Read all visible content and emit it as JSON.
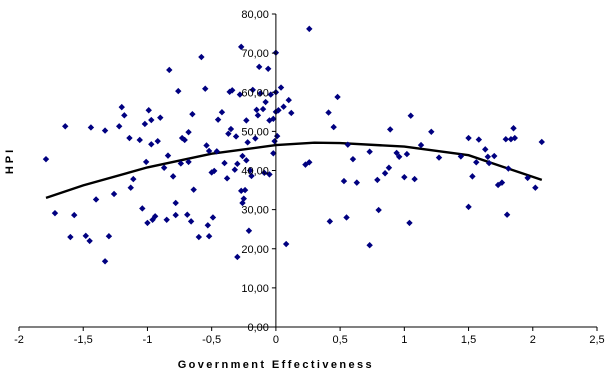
{
  "chart_data": {
    "type": "scatter",
    "title": "",
    "xlabel": "Government Effectiveness",
    "ylabel": "HPI",
    "xlim": [
      -2,
      2.5
    ],
    "ylim": [
      0,
      80
    ],
    "x_ticks": [
      "-2",
      "-1,5",
      "-1",
      "-0,5",
      "0",
      "0,5",
      "1",
      "1,5",
      "2",
      "2,5"
    ],
    "y_ticks": [
      "0,00",
      "10,00",
      "20,00",
      "30,00",
      "40,00",
      "50,00",
      "60,00",
      "70,00",
      "80,00"
    ],
    "grid": false,
    "legend": "none",
    "marker_color": "#000080",
    "trendline": {
      "type": "polynomial",
      "color": "#000000",
      "points": [
        [
          -1.79,
          33.0
        ],
        [
          -1.5,
          36.2
        ],
        [
          -1.0,
          40.8
        ],
        [
          -0.5,
          44.3
        ],
        [
          0.0,
          46.5
        ],
        [
          0.3,
          47.1
        ],
        [
          0.5,
          47.0
        ],
        [
          1.0,
          46.1
        ],
        [
          1.5,
          43.9
        ],
        [
          2.07,
          37.6
        ]
      ]
    },
    "series": [
      {
        "points": [
          [
            -1.79,
            42.9
          ],
          [
            -1.72,
            29.1
          ],
          [
            -1.64,
            51.3
          ],
          [
            -1.6,
            23.0
          ],
          [
            -1.57,
            28.6
          ],
          [
            -1.48,
            23.3
          ],
          [
            -1.45,
            22.0
          ],
          [
            -1.44,
            51.0
          ],
          [
            -1.4,
            32.6
          ],
          [
            -1.33,
            16.8
          ],
          [
            -1.33,
            50.2
          ],
          [
            -1.3,
            23.2
          ],
          [
            -1.26,
            34.0
          ],
          [
            -1.22,
            51.3
          ],
          [
            -1.2,
            56.2
          ],
          [
            -1.18,
            54.1
          ],
          [
            -1.14,
            48.3
          ],
          [
            -1.13,
            35.6
          ],
          [
            -1.11,
            37.8
          ],
          [
            -1.06,
            47.8
          ],
          [
            -1.04,
            30.3
          ],
          [
            -1.02,
            51.9
          ],
          [
            -1.01,
            42.2
          ],
          [
            -1.0,
            26.6
          ],
          [
            -0.99,
            55.4
          ],
          [
            -0.97,
            52.9
          ],
          [
            -0.97,
            46.7
          ],
          [
            -0.96,
            27.4
          ],
          [
            -0.94,
            28.3
          ],
          [
            -0.92,
            47.5
          ],
          [
            -0.9,
            53.5
          ],
          [
            -0.87,
            40.7
          ],
          [
            -0.85,
            27.4
          ],
          [
            -0.84,
            43.8
          ],
          [
            -0.83,
            65.7
          ],
          [
            -0.8,
            38.5
          ],
          [
            -0.78,
            31.7
          ],
          [
            -0.78,
            28.6
          ],
          [
            -0.76,
            60.3
          ],
          [
            -0.74,
            41.8
          ],
          [
            -0.73,
            48.3
          ],
          [
            -0.71,
            47.8
          ],
          [
            -0.69,
            28.7
          ],
          [
            -0.68,
            42.2
          ],
          [
            -0.68,
            49.8
          ],
          [
            -0.66,
            27.0
          ],
          [
            -0.65,
            54.4
          ],
          [
            -0.64,
            35.1
          ],
          [
            -0.6,
            23.0
          ],
          [
            -0.58,
            69.0
          ],
          [
            -0.55,
            60.9
          ],
          [
            -0.54,
            46.4
          ],
          [
            -0.53,
            26.0
          ],
          [
            -0.52,
            23.2
          ],
          [
            -0.52,
            45.0
          ],
          [
            -0.5,
            39.5
          ],
          [
            -0.49,
            28.0
          ],
          [
            -0.48,
            39.9
          ],
          [
            -0.46,
            44.9
          ],
          [
            -0.45,
            53.0
          ],
          [
            -0.42,
            54.9
          ],
          [
            -0.4,
            41.9
          ],
          [
            -0.38,
            38.0
          ],
          [
            -0.37,
            49.4
          ],
          [
            -0.36,
            60.1
          ],
          [
            -0.35,
            50.6
          ],
          [
            -0.34,
            60.5
          ],
          [
            -0.32,
            40.2
          ],
          [
            -0.31,
            48.7
          ],
          [
            -0.3,
            17.9
          ],
          [
            -0.3,
            41.7
          ],
          [
            -0.28,
            59.4
          ],
          [
            -0.27,
            71.6
          ],
          [
            -0.27,
            34.8
          ],
          [
            -0.26,
            31.7
          ],
          [
            -0.26,
            43.7
          ],
          [
            -0.25,
            32.8
          ],
          [
            -0.24,
            35.0
          ],
          [
            -0.23,
            42.6
          ],
          [
            -0.23,
            52.8
          ],
          [
            -0.22,
            47.2
          ],
          [
            -0.21,
            24.6
          ],
          [
            -0.2,
            40.0
          ],
          [
            -0.19,
            38.6
          ],
          [
            -0.18,
            60.6
          ],
          [
            -0.16,
            48.2
          ],
          [
            -0.15,
            55.5
          ],
          [
            -0.14,
            54.1
          ],
          [
            -0.13,
            66.5
          ],
          [
            -0.12,
            59.7
          ],
          [
            -0.1,
            55.7
          ],
          [
            -0.09,
            39.4
          ],
          [
            -0.08,
            57.5
          ],
          [
            -0.06,
            66.0
          ],
          [
            -0.05,
            39.0
          ],
          [
            -0.05,
            52.8
          ],
          [
            -0.04,
            59.4
          ],
          [
            -0.02,
            44.4
          ],
          [
            -0.02,
            53.2
          ],
          [
            -0.01,
            47.5
          ],
          [
            0.0,
            55.0
          ],
          [
            0.0,
            60.0
          ],
          [
            0.0,
            70.1
          ],
          [
            0.01,
            48.8
          ],
          [
            0.02,
            55.4
          ],
          [
            0.04,
            61.2
          ],
          [
            0.06,
            56.3
          ],
          [
            0.08,
            21.2
          ],
          [
            0.1,
            58.0
          ],
          [
            0.12,
            54.7
          ],
          [
            0.23,
            41.5
          ],
          [
            0.26,
            42.1
          ],
          [
            0.26,
            76.2
          ],
          [
            0.41,
            54.8
          ],
          [
            0.42,
            27.0
          ],
          [
            0.45,
            51.1
          ],
          [
            0.48,
            58.8
          ],
          [
            0.53,
            37.3
          ],
          [
            0.55,
            28.0
          ],
          [
            0.56,
            46.6
          ],
          [
            0.6,
            42.9
          ],
          [
            0.63,
            36.9
          ],
          [
            0.73,
            44.8
          ],
          [
            0.73,
            20.9
          ],
          [
            0.79,
            37.6
          ],
          [
            0.8,
            29.9
          ],
          [
            0.85,
            39.3
          ],
          [
            0.88,
            40.7
          ],
          [
            0.89,
            50.5
          ],
          [
            0.94,
            44.5
          ],
          [
            0.96,
            43.5
          ],
          [
            1.0,
            38.3
          ],
          [
            1.02,
            44.2
          ],
          [
            1.04,
            26.6
          ],
          [
            1.05,
            54.0
          ],
          [
            1.08,
            37.8
          ],
          [
            1.13,
            46.5
          ],
          [
            1.21,
            49.9
          ],
          [
            1.27,
            43.3
          ],
          [
            1.44,
            43.6
          ],
          [
            1.5,
            30.7
          ],
          [
            1.5,
            48.3
          ],
          [
            1.53,
            38.5
          ],
          [
            1.56,
            42.1
          ],
          [
            1.58,
            47.9
          ],
          [
            1.63,
            45.4
          ],
          [
            1.65,
            43.5
          ],
          [
            1.66,
            41.9
          ],
          [
            1.7,
            43.7
          ],
          [
            1.73,
            36.3
          ],
          [
            1.76,
            36.9
          ],
          [
            1.79,
            48.0
          ],
          [
            1.8,
            28.7
          ],
          [
            1.81,
            40.5
          ],
          [
            1.83,
            48.0
          ],
          [
            1.85,
            50.8
          ],
          [
            1.86,
            48.3
          ],
          [
            1.96,
            38.1
          ],
          [
            2.02,
            35.6
          ],
          [
            2.07,
            47.3
          ]
        ]
      }
    ]
  }
}
